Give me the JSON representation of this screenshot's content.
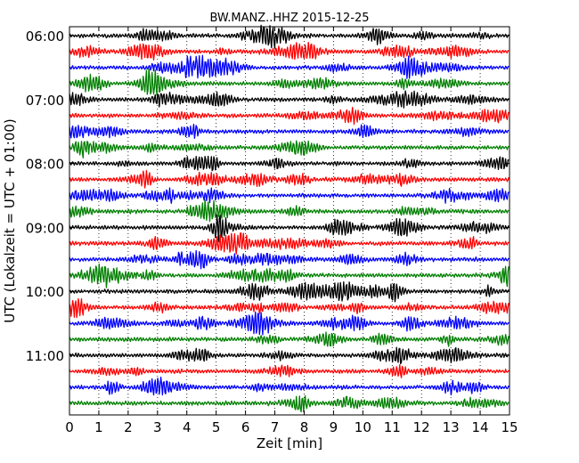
{
  "chart_data": {
    "type": "line",
    "subtype": "helicorder",
    "title": "BW.MANZ..HHZ 2015-12-25",
    "xlabel": "Zeit  [min]",
    "ylabel": "UTC (Lokalzeit = UTC + 01:00)",
    "xlim": [
      0,
      15
    ],
    "x_ticks": [
      "0",
      "1",
      "2",
      "3",
      "4",
      "5",
      "6",
      "7",
      "8",
      "9",
      "10",
      "11",
      "12",
      "13",
      "14",
      "15"
    ],
    "y_ticks": [
      "06:00",
      "07:00",
      "08:00",
      "09:00",
      "10:00",
      "11:00"
    ],
    "trace_interval_min": 15,
    "trace_count": 24,
    "trace_colors": [
      "#000000",
      "#ff0000",
      "#0000ff",
      "#008000"
    ],
    "grid": "vertical dotted"
  }
}
